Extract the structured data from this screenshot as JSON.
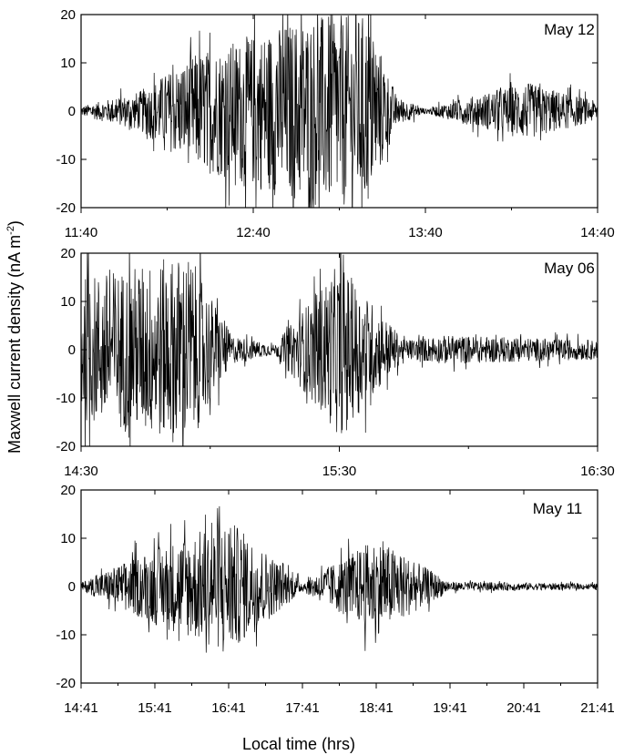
{
  "figure": {
    "ylabel": "Maxwell current density (nA m",
    "ylabel_sup": "-2",
    "ylabel_tail": ")",
    "xlabel": "Local time (hrs)"
  },
  "chart_data": [
    {
      "type": "line",
      "annotation": "May 12",
      "ylim": [
        -20,
        20
      ],
      "yticks": [
        -20,
        -10,
        0,
        10,
        20
      ],
      "x_tick_labels": [
        "11:40",
        "12:40",
        "13:40",
        "14:40"
      ],
      "xlim_hours": [
        11.6667,
        14.6667
      ],
      "envelope": [
        {
          "t": "11:40",
          "amp": 1
        },
        {
          "t": "12:00",
          "amp": 4
        },
        {
          "t": "12:20",
          "amp": 12
        },
        {
          "t": "12:40",
          "amp": 16
        },
        {
          "t": "13:00",
          "amp": 20
        },
        {
          "t": "13:20",
          "amp": 20
        },
        {
          "t": "13:30",
          "amp": 3
        },
        {
          "t": "13:40",
          "amp": 0.5
        },
        {
          "t": "14:15",
          "amp": 6
        },
        {
          "t": "14:40",
          "amp": 2
        }
      ]
    },
    {
      "type": "line",
      "annotation": "May 06",
      "ylim": [
        -20,
        20
      ],
      "yticks": [
        -20,
        -10,
        0,
        10,
        20
      ],
      "x_tick_labels": [
        "14:30",
        "15:30",
        "16:30"
      ],
      "xlim_hours": [
        14.5,
        16.5
      ],
      "envelope": [
        {
          "t": "14:30",
          "amp": 15
        },
        {
          "t": "14:55",
          "amp": 20
        },
        {
          "t": "15:05",
          "amp": 3
        },
        {
          "t": "15:15",
          "amp": 1
        },
        {
          "t": "15:30",
          "amp": 18
        },
        {
          "t": "15:45",
          "amp": 2
        },
        {
          "t": "15:55",
          "amp": 3
        },
        {
          "t": "16:30",
          "amp": 2
        }
      ]
    },
    {
      "type": "line",
      "annotation": "May 11",
      "ylim": [
        -20,
        20
      ],
      "yticks": [
        -20,
        -10,
        0,
        10,
        20
      ],
      "x_tick_labels": [
        "14:41",
        "15:41",
        "16:41",
        "17:41",
        "18:41",
        "19:41",
        "20:41",
        "21:41"
      ],
      "xlim_hours": [
        14.6833,
        21.6833
      ],
      "envelope": [
        {
          "t": "14:41",
          "amp": 0.8
        },
        {
          "t": "15:41",
          "amp": 8
        },
        {
          "t": "16:41",
          "amp": 14
        },
        {
          "t": "17:41",
          "amp": 1
        },
        {
          "t": "18:41",
          "amp": 10
        },
        {
          "t": "19:41",
          "amp": 1
        },
        {
          "t": "21:41",
          "amp": 0.6
        }
      ]
    }
  ]
}
